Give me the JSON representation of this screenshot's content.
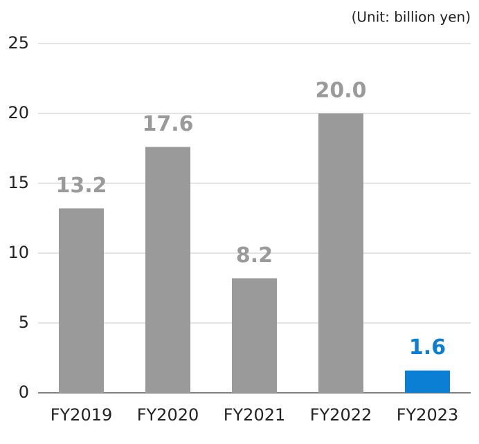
{
  "chart_data": {
    "type": "bar",
    "unit_label": "(Unit: billion yen)",
    "categories": [
      "FY2019",
      "FY2020",
      "FY2021",
      "FY2022",
      "FY2023"
    ],
    "values": [
      13.2,
      17.6,
      8.2,
      20.0,
      1.6
    ],
    "value_labels": [
      "13.2",
      "17.6",
      "8.2",
      "20.0",
      "1.6"
    ],
    "colors": [
      "#9a9a9a",
      "#9a9a9a",
      "#9a9a9a",
      "#9a9a9a",
      "#0a7fd4"
    ],
    "ylim": [
      0,
      25
    ],
    "yticks": [
      0,
      5,
      10,
      15,
      20,
      25
    ],
    "grid": true
  }
}
